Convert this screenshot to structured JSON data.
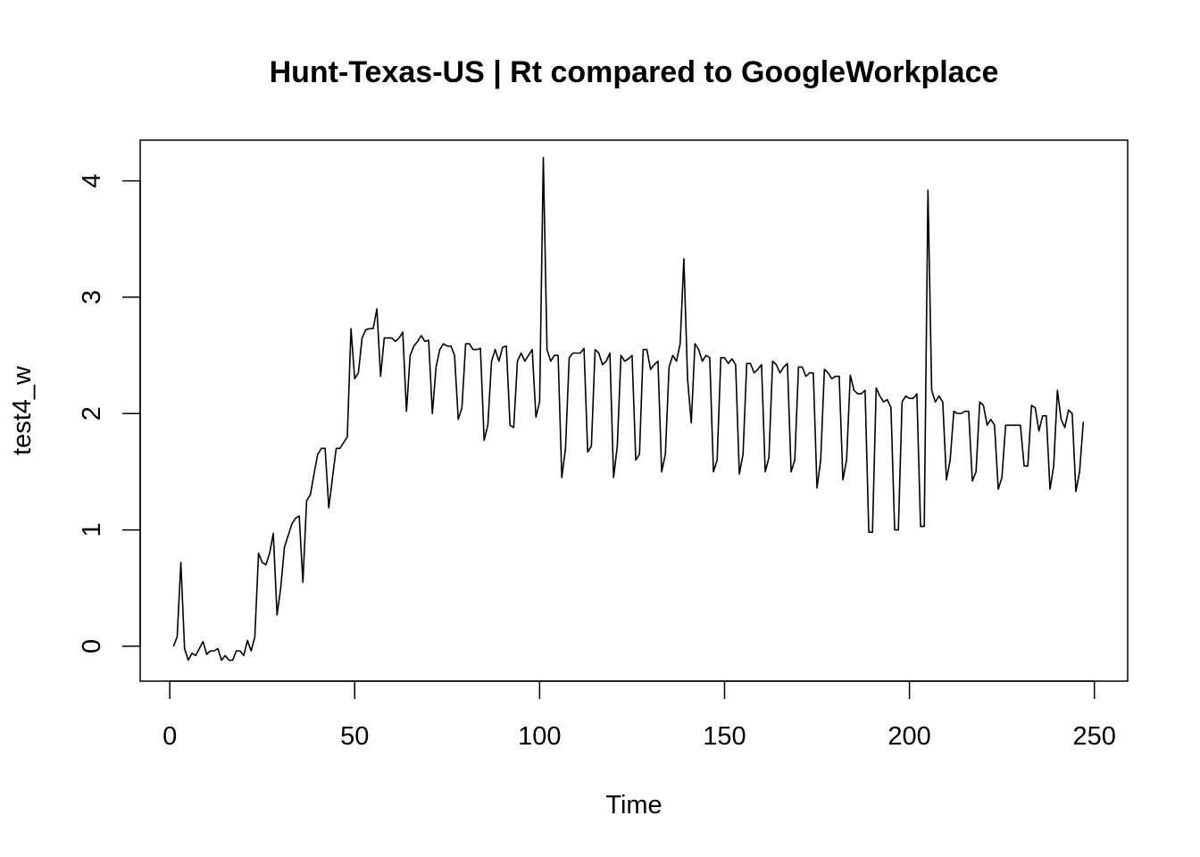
{
  "chart_data": {
    "type": "line",
    "title": "Hunt-Texas-US | Rt compared to GoogleWorkplace",
    "xlabel": "Time",
    "ylabel": "test4_w",
    "xlim": [
      -8,
      259
    ],
    "ylim": [
      -0.3,
      4.35
    ],
    "xticks": [
      0,
      50,
      100,
      150,
      200,
      250
    ],
    "xtick_labels": [
      "0",
      "50",
      "100",
      "150",
      "200",
      "250"
    ],
    "yticks": [
      0,
      1,
      2,
      3,
      4
    ],
    "ytick_labels": [
      "0",
      "1",
      "2",
      "3",
      "4"
    ],
    "grid": false,
    "legend": "none",
    "line_color": "#000000",
    "series": [
      {
        "values": [
          0.0,
          0.08,
          0.72,
          -0.02,
          -0.12,
          -0.06,
          -0.08,
          -0.02,
          0.04,
          -0.07,
          -0.04,
          -0.04,
          -0.02,
          -0.12,
          -0.08,
          -0.12,
          -0.12,
          -0.04,
          -0.04,
          -0.08,
          0.05,
          -0.04,
          0.08,
          0.8,
          0.72,
          0.7,
          0.8,
          0.97,
          0.27,
          0.5,
          0.85,
          0.95,
          1.05,
          1.1,
          1.12,
          0.55,
          1.25,
          1.3,
          1.48,
          1.65,
          1.7,
          1.7,
          1.19,
          1.45,
          1.7,
          1.7,
          1.75,
          1.8,
          2.73,
          2.3,
          2.35,
          2.65,
          2.72,
          2.73,
          2.73,
          2.9,
          2.32,
          2.65,
          2.65,
          2.65,
          2.62,
          2.65,
          2.7,
          2.02,
          2.5,
          2.58,
          2.62,
          2.67,
          2.62,
          2.63,
          2.0,
          2.4,
          2.55,
          2.6,
          2.58,
          2.58,
          2.5,
          1.95,
          2.05,
          2.6,
          2.6,
          2.55,
          2.55,
          2.56,
          1.77,
          1.9,
          2.45,
          2.55,
          2.45,
          2.57,
          2.58,
          1.9,
          1.88,
          2.45,
          2.52,
          2.45,
          2.5,
          2.55,
          1.97,
          2.1,
          4.2,
          2.55,
          2.45,
          2.5,
          2.5,
          1.45,
          1.7,
          2.48,
          2.52,
          2.52,
          2.52,
          2.56,
          1.67,
          1.72,
          2.55,
          2.52,
          2.42,
          2.45,
          2.52,
          1.45,
          1.72,
          2.5,
          2.45,
          2.47,
          2.5,
          1.6,
          1.65,
          2.55,
          2.55,
          2.38,
          2.42,
          2.45,
          1.5,
          1.65,
          2.4,
          2.5,
          2.45,
          2.6,
          3.33,
          2.3,
          1.92,
          2.6,
          2.55,
          2.45,
          2.5,
          2.48,
          1.5,
          1.6,
          2.48,
          2.48,
          2.43,
          2.47,
          2.42,
          1.48,
          1.65,
          2.43,
          2.43,
          2.35,
          2.38,
          2.42,
          1.5,
          1.62,
          2.45,
          2.42,
          2.35,
          2.4,
          2.43,
          1.5,
          1.6,
          2.4,
          2.4,
          2.32,
          2.35,
          2.35,
          1.36,
          1.6,
          2.38,
          2.35,
          2.3,
          2.32,
          2.32,
          1.43,
          1.6,
          2.33,
          2.2,
          2.17,
          2.17,
          2.2,
          0.98,
          0.98,
          2.22,
          2.15,
          2.1,
          2.12,
          2.05,
          1.0,
          1.0,
          2.1,
          2.15,
          2.13,
          2.13,
          2.17,
          1.03,
          1.03,
          3.92,
          2.2,
          2.1,
          2.15,
          2.1,
          1.43,
          1.6,
          2.02,
          2.0,
          2.0,
          2.02,
          2.02,
          1.42,
          1.5,
          2.1,
          2.07,
          1.9,
          1.95,
          1.9,
          1.35,
          1.45,
          1.9,
          1.9,
          1.9,
          1.9,
          1.9,
          1.55,
          1.55,
          2.07,
          2.05,
          1.85,
          1.98,
          1.98,
          1.35,
          1.55,
          2.2,
          1.95,
          1.88,
          2.03,
          2.0,
          1.33,
          1.5,
          1.93
        ]
      }
    ]
  }
}
